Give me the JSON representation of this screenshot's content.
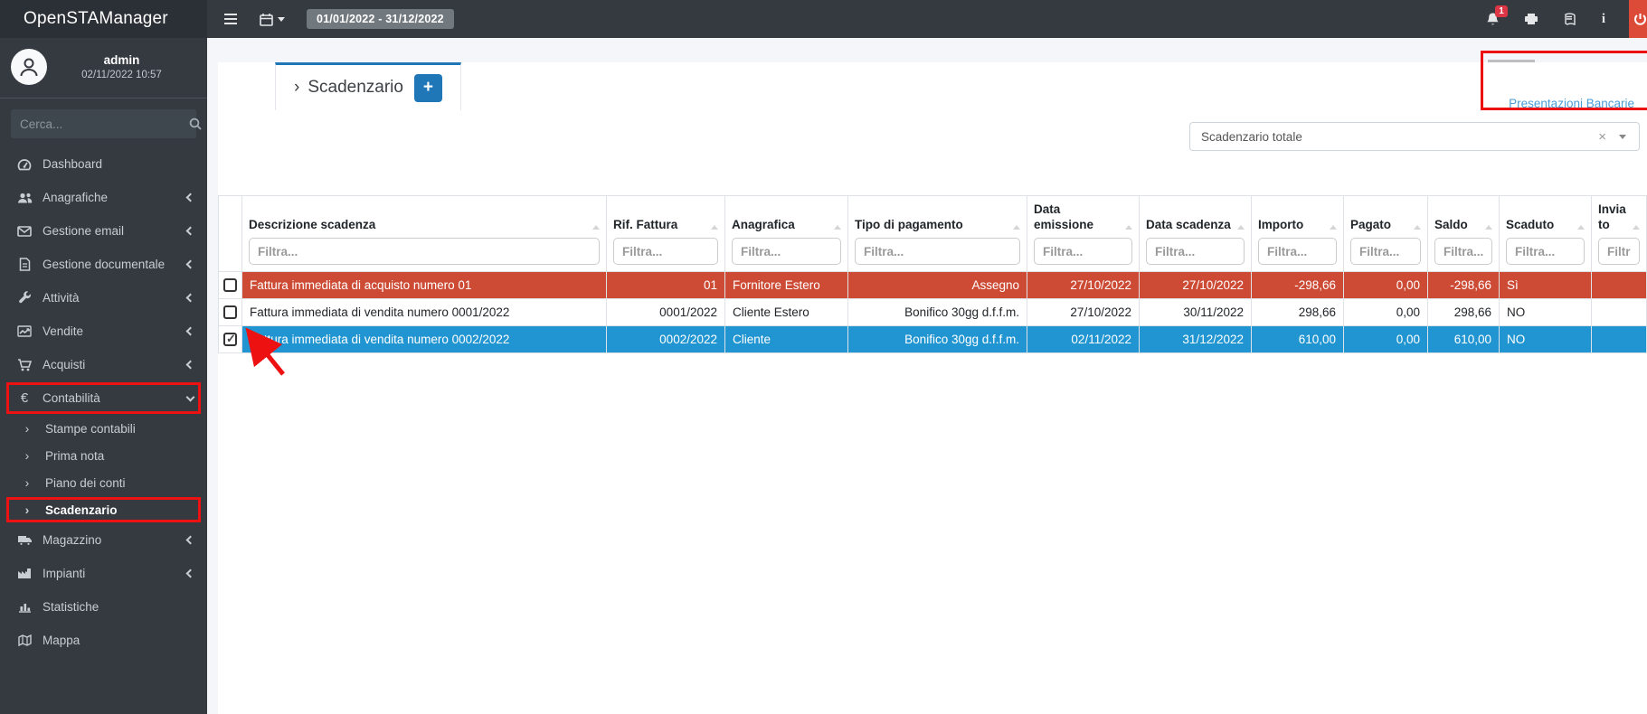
{
  "colors": {
    "accent": "#1f77b8",
    "link": "#4a9cd6",
    "danger_row": "#cd4b35",
    "selected_row": "#2095d1",
    "annotation": "#ee1111",
    "topbar": "#343a40"
  },
  "topbar": {
    "brand": "OpenSTAManager",
    "date_range": "01/01/2022 - 31/12/2022",
    "notifications_count": "1"
  },
  "sidebar": {
    "user": {
      "name": "admin",
      "datetime": "02/11/2022 10:57"
    },
    "search_placeholder": "Cerca...",
    "items": [
      {
        "label": "Dashboard",
        "icon": "tachometer"
      },
      {
        "label": "Anagrafiche",
        "icon": "users",
        "chevron": true
      },
      {
        "label": "Gestione email",
        "icon": "envelope",
        "chevron": true
      },
      {
        "label": "Gestione documentale",
        "icon": "file",
        "chevron": true
      },
      {
        "label": "Attività",
        "icon": "wrench",
        "chevron": true
      },
      {
        "label": "Vendite",
        "icon": "chart-line",
        "chevron": true
      },
      {
        "label": "Acquisti",
        "icon": "cart",
        "chevron": true
      },
      {
        "label": "Contabilità",
        "icon": "euro",
        "expanded": true,
        "annotated": true
      },
      {
        "label": "Stampe contabili",
        "sub": true
      },
      {
        "label": "Prima nota",
        "sub": true
      },
      {
        "label": "Piano dei conti",
        "sub": true
      },
      {
        "label": "Scadenzario",
        "sub": true,
        "active": true,
        "annotated": true
      },
      {
        "label": "Magazzino",
        "icon": "truck",
        "chevron": true
      },
      {
        "label": "Impianti",
        "icon": "industry",
        "chevron": true
      },
      {
        "label": "Statistiche",
        "icon": "chart-bar"
      },
      {
        "label": "Mappa",
        "icon": "map"
      }
    ]
  },
  "main": {
    "title_chevron": "›",
    "page_title": "Scadenzario",
    "add_button_label": "+",
    "presentazioni_link": "Presentazioni Bancarie",
    "filter_select_value": "Scadenzario totale",
    "filter_select_clear": "×",
    "table": {
      "filter_placeholder": "Filtra...",
      "columns": [
        "Descrizione scadenza",
        "Rif. Fattura",
        "Anagrafica",
        "Tipo di pagamento",
        "Data emissione",
        "Data scadenza",
        "Importo",
        "Pagato",
        "Saldo",
        "Scaduto",
        "Inviato"
      ],
      "rows": [
        {
          "style": "danger",
          "checked": false,
          "cells": [
            "Fattura immediata di acquisto numero 01",
            "01",
            "Fornitore Estero",
            "Assegno",
            "27/10/2022",
            "27/10/2022",
            "-298,66",
            "0,00",
            "-298,66",
            "Sì",
            ""
          ]
        },
        {
          "style": "plain",
          "checked": false,
          "cells": [
            "Fattura immediata di vendita numero 0001/2022",
            "0001/2022",
            "Cliente Estero",
            "Bonifico 30gg d.f.f.m.",
            "27/10/2022",
            "30/11/2022",
            "298,66",
            "0,00",
            "298,66",
            "NO",
            ""
          ]
        },
        {
          "style": "selected",
          "checked": true,
          "cells": [
            "Fattura immediata di vendita numero 0002/2022",
            "0002/2022",
            "Cliente",
            "Bonifico 30gg d.f.f.m.",
            "02/11/2022",
            "31/12/2022",
            "610,00",
            "0,00",
            "610,00",
            "NO",
            ""
          ]
        }
      ]
    }
  }
}
